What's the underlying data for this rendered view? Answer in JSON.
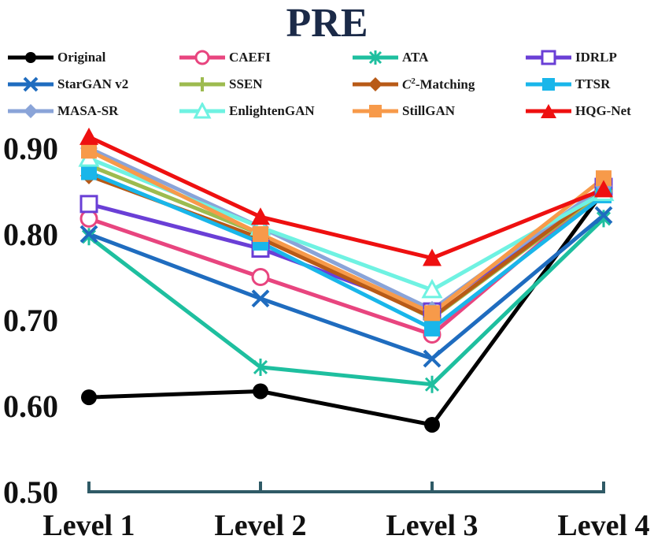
{
  "chart_data": {
    "type": "line",
    "title": "PRE",
    "xlabel": "",
    "ylabel": "",
    "categories": [
      "Level 1",
      "Level 2",
      "Level 3",
      "Level 4"
    ],
    "ylim": [
      0.5,
      0.92
    ],
    "yticks": [
      "0.50",
      "0.60",
      "0.70",
      "0.80",
      "0.90"
    ],
    "grid": false,
    "legend_position": "top",
    "series": [
      {
        "name": "Original",
        "color": "#000000",
        "marker": "filled-circle",
        "values": [
          0.61,
          0.617,
          0.578,
          0.85
        ]
      },
      {
        "name": "CAEFI",
        "color": "#e8457f",
        "marker": "open-circle",
        "values": [
          0.818,
          0.75,
          0.683,
          0.852
        ]
      },
      {
        "name": "ATA",
        "color": "#1ebf9f",
        "marker": "asterisk",
        "values": [
          0.797,
          0.645,
          0.625,
          0.818
        ]
      },
      {
        "name": "IDRLP",
        "color": "#6a3fd6",
        "marker": "open-square",
        "values": [
          0.835,
          0.783,
          0.71,
          0.855
        ]
      },
      {
        "name": "StarGAN v2",
        "color": "#1f6cbf",
        "marker": "x",
        "values": [
          0.8,
          0.725,
          0.655,
          0.822
        ]
      },
      {
        "name": "SSEN",
        "color": "#9dbb4f",
        "marker": "plus",
        "values": [
          0.88,
          0.8,
          0.702,
          0.85
        ]
      },
      {
        "name": "C²-Matching",
        "color": "#b85a17",
        "marker": "diamond",
        "values": [
          0.868,
          0.795,
          0.703,
          0.852
        ]
      },
      {
        "name": "TTSR",
        "color": "#19b6ea",
        "marker": "filled-square",
        "values": [
          0.872,
          0.79,
          0.69,
          0.845
        ]
      },
      {
        "name": "MASA-SR",
        "color": "#8aa4d8",
        "marker": "diamond",
        "values": [
          0.9,
          0.808,
          0.712,
          0.856
        ]
      },
      {
        "name": "EnlightenGAN",
        "color": "#6ff2e2",
        "marker": "open-triangle",
        "values": [
          0.888,
          0.808,
          0.735,
          0.848
        ]
      },
      {
        "name": "StillGAN",
        "color": "#f79a4a",
        "marker": "filled-square",
        "values": [
          0.897,
          0.8,
          0.708,
          0.865
        ]
      },
      {
        "name": "HQG-Net",
        "color": "#ee1010",
        "marker": "filled-triangle",
        "values": [
          0.913,
          0.82,
          0.772,
          0.852
        ]
      }
    ],
    "legend_labels": {
      "c2_prefix": "C",
      "c2_sup": "2",
      "c2_suffix": "-Matching"
    }
  }
}
